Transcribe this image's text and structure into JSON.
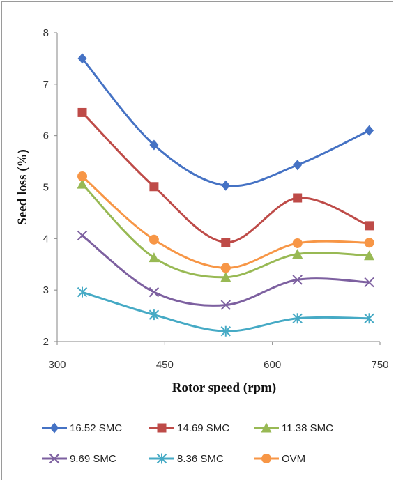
{
  "chart_data": {
    "type": "line",
    "title": "",
    "xlabel": "Rotor speed (rpm)",
    "ylabel": "Seed loss (%)",
    "xlim": [
      300,
      750
    ],
    "ylim": [
      2,
      8
    ],
    "xticks": [
      300,
      450,
      600,
      750
    ],
    "yticks": [
      2,
      3,
      4,
      5,
      6,
      7,
      8
    ],
    "grid": false,
    "legend_position": "bottom",
    "x": [
      335,
      435,
      535,
      635,
      735
    ],
    "series": [
      {
        "name": "16.52 SMC",
        "values": [
          7.5,
          5.82,
          5.03,
          5.43,
          6.1
        ],
        "color": "#4572C4",
        "marker": "diamond"
      },
      {
        "name": "14.69 SMC",
        "values": [
          6.45,
          5.01,
          3.93,
          4.79,
          4.25
        ],
        "color": "#BE4B48",
        "marker": "square"
      },
      {
        "name": "11.38 SMC",
        "values": [
          5.06,
          3.63,
          3.25,
          3.7,
          3.67
        ],
        "color": "#98B954",
        "marker": "triangle"
      },
      {
        "name": "9.69 SMC",
        "values": [
          4.06,
          2.96,
          2.71,
          3.2,
          3.15
        ],
        "color": "#7D60A0",
        "marker": "x"
      },
      {
        "name": "8.36 SMC",
        "values": [
          2.96,
          2.52,
          2.2,
          2.45,
          2.45
        ],
        "color": "#46AAC5",
        "marker": "star"
      },
      {
        "name": "OVM",
        "values": [
          5.21,
          3.98,
          3.43,
          3.91,
          3.92
        ],
        "color": "#F79646",
        "marker": "circle"
      }
    ]
  }
}
